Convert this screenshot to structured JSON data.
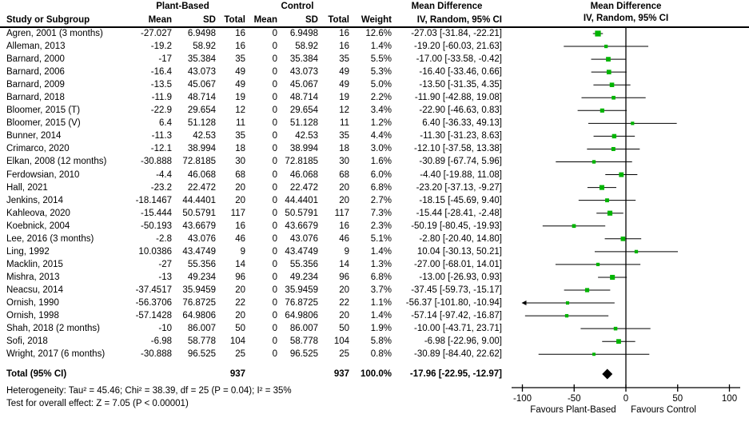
{
  "header": {
    "group1": "Plant-Based",
    "group2": "Control",
    "md_text_col": "Mean Difference",
    "md_plot_col": "Mean Difference",
    "study": "Study or Subgroup",
    "mean1": "Mean",
    "sd1": "SD",
    "total1": "Total",
    "mean2": "Mean",
    "sd2": "SD",
    "total2": "Total",
    "weight": "Weight",
    "ci_text_col": "IV, Random, 95% CI",
    "ci_plot_col": "IV, Random, 95% CI"
  },
  "chart_data": {
    "type": "forest",
    "effect_measure": "Mean Difference (IV, Random, 95% CI)",
    "studies": [
      {
        "study": "Agren, 2001 (3 months)",
        "mean1": "-27.027",
        "sd1": "6.9498",
        "n1": "16",
        "mean2": "0",
        "sd2": "6.9498",
        "n2": "16",
        "weight": "12.6%",
        "ci_text": "-27.03 [-31.84, -22.21]",
        "est": -27.03,
        "lo": -31.84,
        "hi": -22.21,
        "w": 12.6
      },
      {
        "study": "Alleman, 2013",
        "mean1": "-19.2",
        "sd1": "58.92",
        "n1": "16",
        "mean2": "0",
        "sd2": "58.92",
        "n2": "16",
        "weight": "1.4%",
        "ci_text": "-19.20 [-60.03, 21.63]",
        "est": -19.2,
        "lo": -60.03,
        "hi": 21.63,
        "w": 1.4
      },
      {
        "study": "Barnard, 2000",
        "mean1": "-17",
        "sd1": "35.384",
        "n1": "35",
        "mean2": "0",
        "sd2": "35.384",
        "n2": "35",
        "weight": "5.5%",
        "ci_text": "-17.00 [-33.58, -0.42]",
        "est": -17.0,
        "lo": -33.58,
        "hi": -0.42,
        "w": 5.5
      },
      {
        "study": "Barnard, 2006",
        "mean1": "-16.4",
        "sd1": "43.073",
        "n1": "49",
        "mean2": "0",
        "sd2": "43.073",
        "n2": "49",
        "weight": "5.3%",
        "ci_text": "-16.40 [-33.46, 0.66]",
        "est": -16.4,
        "lo": -33.46,
        "hi": 0.66,
        "w": 5.3
      },
      {
        "study": "Barnard, 2009",
        "mean1": "-13.5",
        "sd1": "45.067",
        "n1": "49",
        "mean2": "0",
        "sd2": "45.067",
        "n2": "49",
        "weight": "5.0%",
        "ci_text": "-13.50 [-31.35, 4.35]",
        "est": -13.5,
        "lo": -31.35,
        "hi": 4.35,
        "w": 5.0
      },
      {
        "study": "Barnard, 2018",
        "mean1": "-11.9",
        "sd1": "48.714",
        "n1": "19",
        "mean2": "0",
        "sd2": "48.714",
        "n2": "19",
        "weight": "2.2%",
        "ci_text": "-11.90 [-42.88, 19.08]",
        "est": -11.9,
        "lo": -42.88,
        "hi": 19.08,
        "w": 2.2
      },
      {
        "study": "Bloomer, 2015 (T)",
        "mean1": "-22.9",
        "sd1": "29.654",
        "n1": "12",
        "mean2": "0",
        "sd2": "29.654",
        "n2": "12",
        "weight": "3.4%",
        "ci_text": "-22.90 [-46.63, 0.83]",
        "est": -22.9,
        "lo": -46.63,
        "hi": 0.83,
        "w": 3.4
      },
      {
        "study": "Bloomer, 2015 (V)",
        "mean1": "6.4",
        "sd1": "51.128",
        "n1": "11",
        "mean2": "0",
        "sd2": "51.128",
        "n2": "11",
        "weight": "1.2%",
        "ci_text": "6.40 [-36.33, 49.13]",
        "est": 6.4,
        "lo": -36.33,
        "hi": 49.13,
        "w": 1.2
      },
      {
        "study": "Bunner, 2014",
        "mean1": "-11.3",
        "sd1": "42.53",
        "n1": "35",
        "mean2": "0",
        "sd2": "42.53",
        "n2": "35",
        "weight": "4.4%",
        "ci_text": "-11.30 [-31.23, 8.63]",
        "est": -11.3,
        "lo": -31.23,
        "hi": 8.63,
        "w": 4.4
      },
      {
        "study": "Crimarco, 2020",
        "mean1": "-12.1",
        "sd1": "38.994",
        "n1": "18",
        "mean2": "0",
        "sd2": "38.994",
        "n2": "18",
        "weight": "3.0%",
        "ci_text": "-12.10 [-37.58, 13.38]",
        "est": -12.1,
        "lo": -37.58,
        "hi": 13.38,
        "w": 3.0
      },
      {
        "study": "Elkan, 2008 (12 months)",
        "mean1": "-30.888",
        "sd1": "72.8185",
        "n1": "30",
        "mean2": "0",
        "sd2": "72.8185",
        "n2": "30",
        "weight": "1.6%",
        "ci_text": "-30.89 [-67.74, 5.96]",
        "est": -30.89,
        "lo": -67.74,
        "hi": 5.96,
        "w": 1.6
      },
      {
        "study": "Ferdowsian, 2010",
        "mean1": "-4.4",
        "sd1": "46.068",
        "n1": "68",
        "mean2": "0",
        "sd2": "46.068",
        "n2": "68",
        "weight": "6.0%",
        "ci_text": "-4.40 [-19.88, 11.08]",
        "est": -4.4,
        "lo": -19.88,
        "hi": 11.08,
        "w": 6.0
      },
      {
        "study": "Hall, 2021",
        "mean1": "-23.2",
        "sd1": "22.472",
        "n1": "20",
        "mean2": "0",
        "sd2": "22.472",
        "n2": "20",
        "weight": "6.8%",
        "ci_text": "-23.20 [-37.13, -9.27]",
        "est": -23.2,
        "lo": -37.13,
        "hi": -9.27,
        "w": 6.8
      },
      {
        "study": "Jenkins, 2014",
        "mean1": "-18.1467",
        "sd1": "44.4401",
        "n1": "20",
        "mean2": "0",
        "sd2": "44.4401",
        "n2": "20",
        "weight": "2.7%",
        "ci_text": "-18.15 [-45.69, 9.40]",
        "est": -18.15,
        "lo": -45.69,
        "hi": 9.4,
        "w": 2.7
      },
      {
        "study": "Kahleova, 2020",
        "mean1": "-15.444",
        "sd1": "50.5791",
        "n1": "117",
        "mean2": "0",
        "sd2": "50.5791",
        "n2": "117",
        "weight": "7.3%",
        "ci_text": "-15.44 [-28.41, -2.48]",
        "est": -15.44,
        "lo": -28.41,
        "hi": -2.48,
        "w": 7.3
      },
      {
        "study": "Koebnick, 2004",
        "mean1": "-50.193",
        "sd1": "43.6679",
        "n1": "16",
        "mean2": "0",
        "sd2": "43.6679",
        "n2": "16",
        "weight": "2.3%",
        "ci_text": "-50.19 [-80.45, -19.93]",
        "est": -50.19,
        "lo": -80.45,
        "hi": -19.93,
        "w": 2.3
      },
      {
        "study": "Lee, 2016 (3 months)",
        "mean1": "-2.8",
        "sd1": "43.076",
        "n1": "46",
        "mean2": "0",
        "sd2": "43.076",
        "n2": "46",
        "weight": "5.1%",
        "ci_text": "-2.80 [-20.40, 14.80]",
        "est": -2.8,
        "lo": -20.4,
        "hi": 14.8,
        "w": 5.1
      },
      {
        "study": "Ling, 1992",
        "mean1": "10.0386",
        "sd1": "43.4749",
        "n1": "9",
        "mean2": "0",
        "sd2": "43.4749",
        "n2": "9",
        "weight": "1.4%",
        "ci_text": "10.04 [-30.13, 50.21]",
        "est": 10.04,
        "lo": -30.13,
        "hi": 50.21,
        "w": 1.4
      },
      {
        "study": "Macklin, 2015",
        "mean1": "-27",
        "sd1": "55.356",
        "n1": "14",
        "mean2": "0",
        "sd2": "55.356",
        "n2": "14",
        "weight": "1.3%",
        "ci_text": "-27.00 [-68.01, 14.01]",
        "est": -27.0,
        "lo": -68.01,
        "hi": 14.01,
        "w": 1.3
      },
      {
        "study": "Mishra, 2013",
        "mean1": "-13",
        "sd1": "49.234",
        "n1": "96",
        "mean2": "0",
        "sd2": "49.234",
        "n2": "96",
        "weight": "6.8%",
        "ci_text": "-13.00 [-26.93, 0.93]",
        "est": -13.0,
        "lo": -26.93,
        "hi": 0.93,
        "w": 6.8
      },
      {
        "study": "Neacsu, 2014",
        "mean1": "-37.4517",
        "sd1": "35.9459",
        "n1": "20",
        "mean2": "0",
        "sd2": "35.9459",
        "n2": "20",
        "weight": "3.7%",
        "ci_text": "-37.45 [-59.73, -15.17]",
        "est": -37.45,
        "lo": -59.73,
        "hi": -15.17,
        "w": 3.7
      },
      {
        "study": "Ornish, 1990",
        "mean1": "-56.3706",
        "sd1": "76.8725",
        "n1": "22",
        "mean2": "0",
        "sd2": "76.8725",
        "n2": "22",
        "weight": "1.1%",
        "ci_text": "-56.37 [-101.80, -10.94]",
        "est": -56.37,
        "lo": -101.8,
        "hi": -10.94,
        "w": 1.1
      },
      {
        "study": "Ornish, 1998",
        "mean1": "-57.1428",
        "sd1": "64.9806",
        "n1": "20",
        "mean2": "0",
        "sd2": "64.9806",
        "n2": "20",
        "weight": "1.4%",
        "ci_text": "-57.14 [-97.42, -16.87]",
        "est": -57.14,
        "lo": -97.42,
        "hi": -16.87,
        "w": 1.4
      },
      {
        "study": "Shah, 2018 (2 months)",
        "mean1": "-10",
        "sd1": "86.007",
        "n1": "50",
        "mean2": "0",
        "sd2": "86.007",
        "n2": "50",
        "weight": "1.9%",
        "ci_text": "-10.00 [-43.71, 23.71]",
        "est": -10.0,
        "lo": -43.71,
        "hi": 23.71,
        "w": 1.9
      },
      {
        "study": "Sofi, 2018",
        "mean1": "-6.98",
        "sd1": "58.778",
        "n1": "104",
        "mean2": "0",
        "sd2": "58.778",
        "n2": "104",
        "weight": "5.8%",
        "ci_text": "-6.98 [-22.96, 9.00]",
        "est": -6.98,
        "lo": -22.96,
        "hi": 9.0,
        "w": 5.8
      },
      {
        "study": "Wright, 2017 (6 months)",
        "mean1": "-30.888",
        "sd1": "96.525",
        "n1": "25",
        "mean2": "0",
        "sd2": "96.525",
        "n2": "25",
        "weight": "0.8%",
        "ci_text": "-30.89 [-84.40, 22.62]",
        "est": -30.89,
        "lo": -84.4,
        "hi": 22.62,
        "w": 0.8
      }
    ],
    "total": {
      "label": "Total (95% CI)",
      "n1": "937",
      "n2": "937",
      "weight": "100.0%",
      "ci_text": "-17.96 [-22.95, -12.97]",
      "est": -17.96,
      "lo": -22.95,
      "hi": -12.97
    },
    "heterogeneity": "Heterogeneity: Tau² = 45.46; Chi² = 38.39, df = 25 (P = 0.04); I² = 35%",
    "overall_effect": "Test for overall effect: Z = 7.05 (P < 0.00001)",
    "axis": {
      "min": -100,
      "max": 100,
      "ticks": [
        -100,
        -50,
        0,
        50,
        100
      ],
      "favours_left": "Favours Plant-Based",
      "favours_right": "Favours Control"
    },
    "colors": {
      "marker_green": "#00b400",
      "diamond_black": "#000000",
      "line_black": "#000000"
    }
  }
}
